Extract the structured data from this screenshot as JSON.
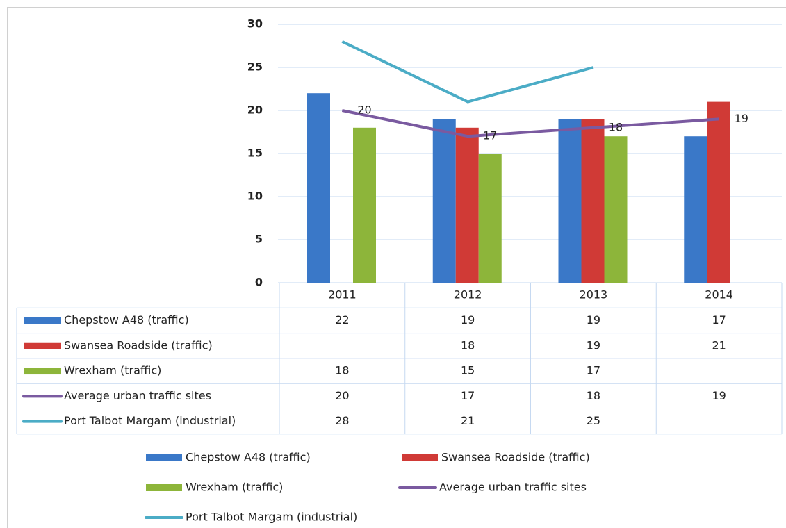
{
  "chart_data": {
    "type": "bar",
    "categories": [
      "2011",
      "2012",
      "2013",
      "2014"
    ],
    "series": [
      {
        "name": "Chepstow A48 (traffic)",
        "type": "bar",
        "color": "#3a78c8",
        "values": [
          22,
          19,
          19,
          17
        ]
      },
      {
        "name": "Swansea Roadside (traffic)",
        "type": "bar",
        "color": "#d03a36",
        "values": [
          null,
          18,
          19,
          21
        ]
      },
      {
        "name": "Wrexham (traffic)",
        "type": "bar",
        "color": "#8db53a",
        "values": [
          18,
          15,
          17,
          null
        ]
      },
      {
        "name": "Average urban traffic sites",
        "type": "line",
        "color": "#7a5aa0",
        "values": [
          20,
          17,
          18,
          19
        ]
      },
      {
        "name": "Port Talbot Margam (industrial)",
        "type": "line",
        "color": "#4bacc6",
        "values": [
          28,
          21,
          25,
          null
        ]
      }
    ],
    "labeled_series": 3,
    "ylim": [
      0,
      30
    ],
    "yticks": [
      0,
      5,
      10,
      15,
      20,
      25,
      30
    ],
    "grid": true,
    "data_table": true
  }
}
